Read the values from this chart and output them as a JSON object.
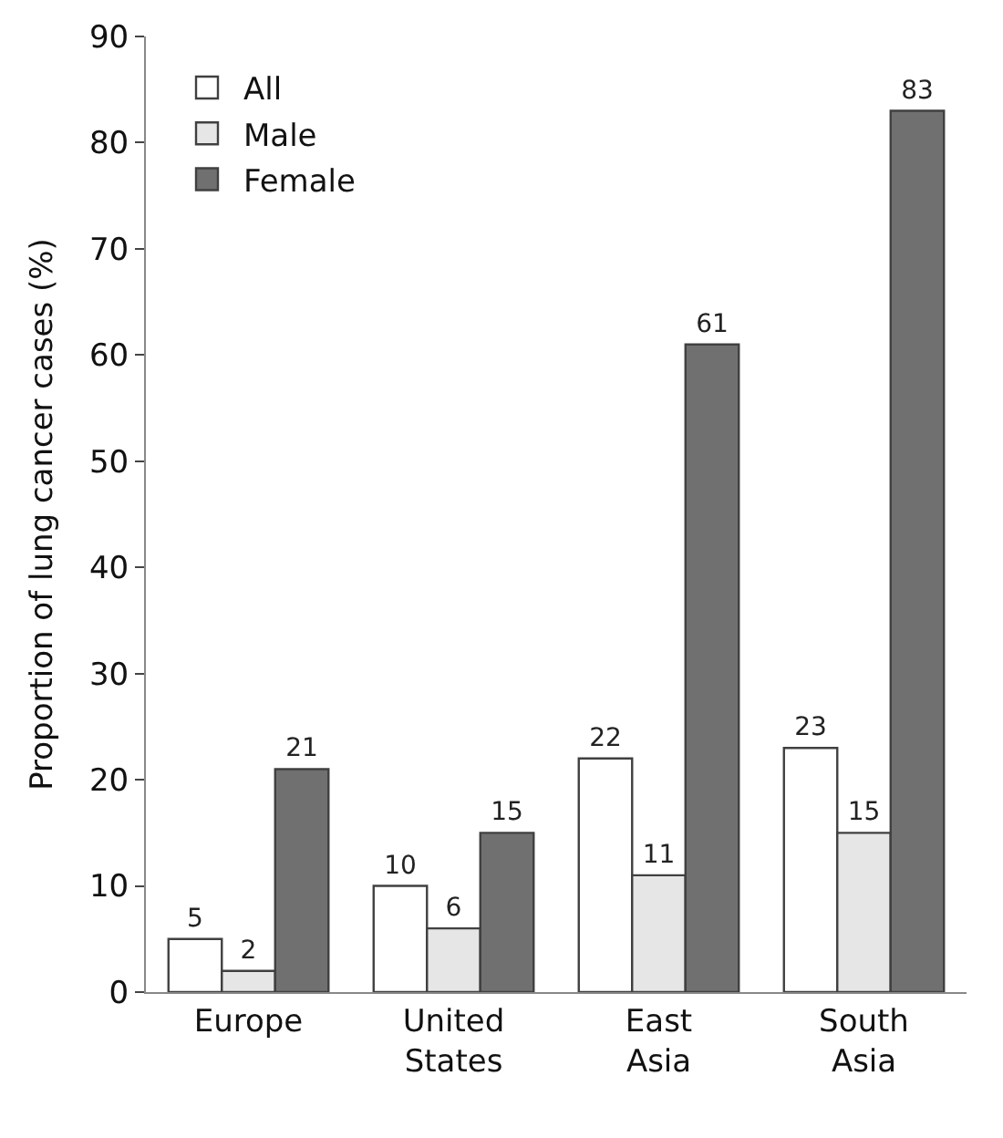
{
  "chart_data": {
    "type": "bar",
    "ylabel": "Proportion of lung cancer cases (%)",
    "categories": [
      "Europe",
      "United\nStates",
      "East\nAsia",
      "South\nAsia"
    ],
    "series": [
      {
        "name": "All",
        "color": "#ffffff",
        "values": [
          5,
          10,
          22,
          23
        ]
      },
      {
        "name": "Male",
        "color": "#e6e6e6",
        "values": [
          2,
          6,
          11,
          15
        ]
      },
      {
        "name": "Female",
        "color": "#707070",
        "values": [
          21,
          15,
          61,
          83
        ]
      }
    ],
    "ylim": [
      0,
      90
    ],
    "yticks": [
      0,
      10,
      20,
      30,
      40,
      50,
      60,
      70,
      80,
      90
    ],
    "legend": "top left",
    "data_labels": true
  }
}
